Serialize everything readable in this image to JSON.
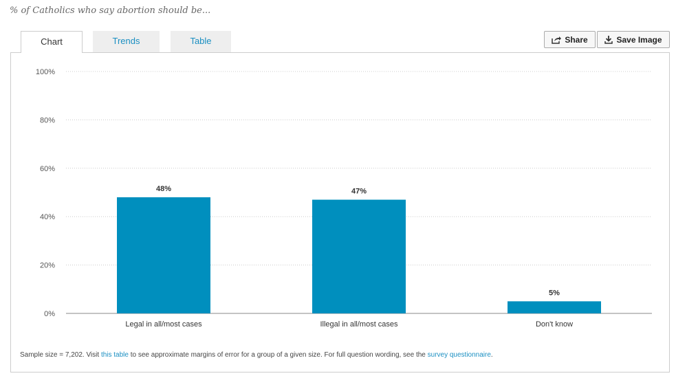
{
  "subtitle": "% of Catholics who say abortion should be...",
  "tabs": [
    {
      "label": "Chart",
      "active": true
    },
    {
      "label": "Trends",
      "active": false
    },
    {
      "label": "Table",
      "active": false
    }
  ],
  "toolbar": {
    "share_label": "Share",
    "share_icon": "share-icon",
    "save_label": "Save Image",
    "save_icon": "download-icon"
  },
  "colors": {
    "bar": "#008fbe",
    "link": "#1a8fc2",
    "grid": "#cccccc"
  },
  "chart_data": {
    "type": "bar",
    "title": "",
    "xlabel": "",
    "ylabel": "",
    "categories": [
      "Legal in all/most cases",
      "Illegal in all/most cases",
      "Don't know"
    ],
    "values": [
      48,
      47,
      5
    ],
    "value_labels": [
      "48%",
      "47%",
      "5%"
    ],
    "ylim": [
      0,
      100
    ],
    "yticks": [
      0,
      20,
      40,
      60,
      80,
      100
    ],
    "ytick_labels": [
      "0%",
      "20%",
      "40%",
      "60%",
      "80%",
      "100%"
    ],
    "grid": true,
    "legend": "none"
  },
  "footer": {
    "text_before": "Sample size = 7,202. Visit ",
    "link1": "this table",
    "text_middle": " to see approximate margins of error for a group of a given size. For full question wording, see the ",
    "link2": "survey questionnaire",
    "text_after": "."
  }
}
